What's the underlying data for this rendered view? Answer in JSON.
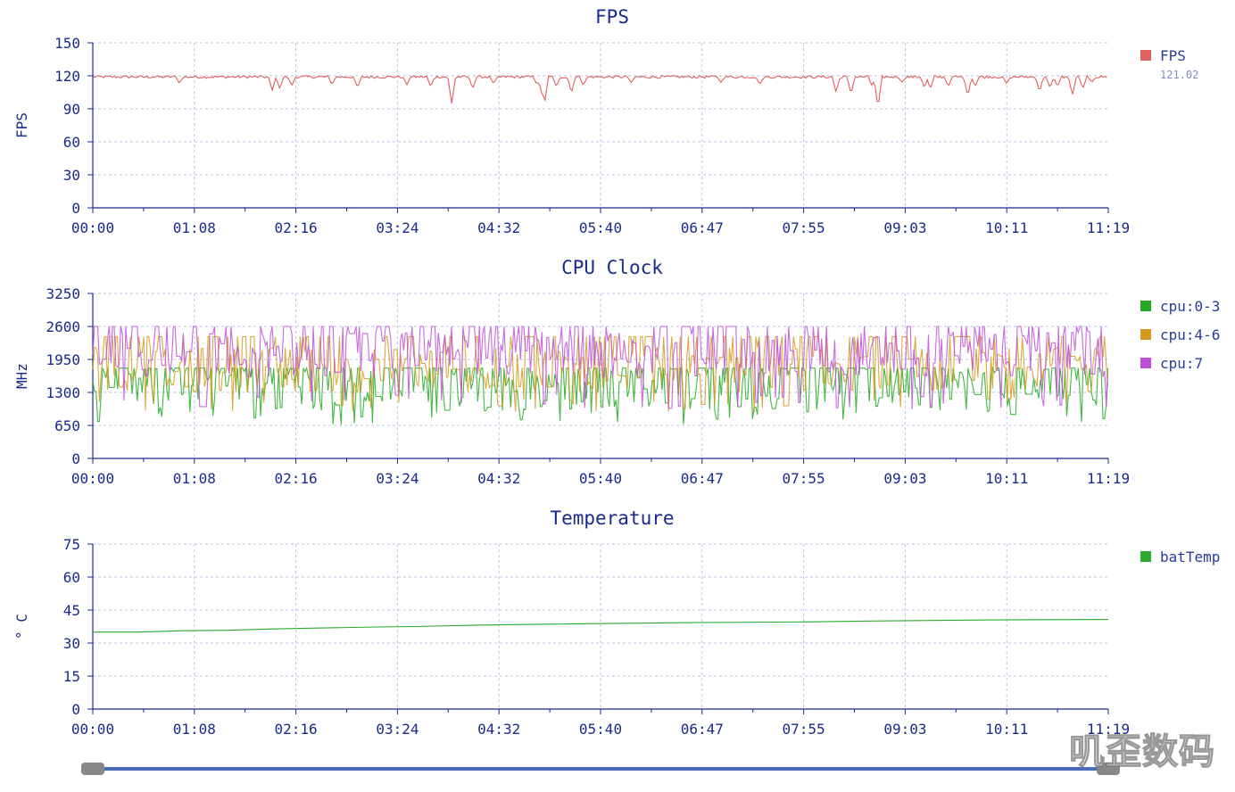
{
  "x_ticks": [
    "00:00",
    "01:08",
    "02:16",
    "03:24",
    "04:32",
    "05:40",
    "06:47",
    "07:55",
    "09:03",
    "10:11",
    "11:19"
  ],
  "watermark": "叽歪数码",
  "colors": {
    "axis": "#1a2a8c",
    "title": "#1a2a8c",
    "grid": "#b8c4e0",
    "legend_text": "#2a3a9c",
    "slider_track": "#4a6ab8",
    "slider_handle": "#888888"
  },
  "chart_data": [
    {
      "type": "line",
      "title": "FPS",
      "ylabel": "FPS",
      "xlabel": "",
      "ylim": [
        0,
        150
      ],
      "yticks": [
        0,
        30,
        60,
        90,
        120,
        150
      ],
      "x_range_seconds": [
        0,
        679
      ],
      "legend_position": "right",
      "grid": true,
      "series": [
        {
          "name": "FPS",
          "color": "#e06060",
          "legend_value": "121.02",
          "baseline": 119,
          "noise": 2.5,
          "dips": [
            [
              58,
              113
            ],
            [
              120,
              107
            ],
            [
              125,
              108
            ],
            [
              133,
              111
            ],
            [
              160,
              112
            ],
            [
              177,
              109
            ],
            [
              210,
              112
            ],
            [
              226,
              110
            ],
            [
              240,
              95
            ],
            [
              254,
              108
            ],
            [
              268,
              113
            ],
            [
              297,
              112
            ],
            [
              300,
              105
            ],
            [
              302,
              94
            ],
            [
              310,
              110
            ],
            [
              320,
              104
            ],
            [
              328,
              111
            ],
            [
              360,
              114
            ],
            [
              420,
              114
            ],
            [
              446,
              112
            ],
            [
              497,
              105
            ],
            [
              507,
              103
            ],
            [
              521,
              111
            ],
            [
              525,
              90
            ],
            [
              541,
              114
            ],
            [
              556,
              109
            ],
            [
              560,
              108
            ],
            [
              572,
              110
            ],
            [
              585,
              101
            ],
            [
              590,
              110
            ],
            [
              611,
              113
            ],
            [
              633,
              105
            ],
            [
              640,
              109
            ],
            [
              645,
              110
            ],
            [
              655,
              102
            ],
            [
              662,
              108
            ],
            [
              668,
              114
            ]
          ]
        }
      ]
    },
    {
      "type": "line",
      "title": "CPU Clock",
      "ylabel": "MHz",
      "xlabel": "",
      "ylim": [
        0,
        3250
      ],
      "yticks": [
        0,
        650,
        1300,
        1950,
        2600,
        3250
      ],
      "x_range_seconds": [
        0,
        679
      ],
      "legend_position": "right",
      "grid": true,
      "series": [
        {
          "name": "cpu:0-3",
          "color": "#22aa22",
          "high": 1780,
          "low": 650,
          "mid": 1400,
          "busy": 0.55
        },
        {
          "name": "cpu:4-6",
          "color": "#d49a20",
          "high": 2400,
          "low": 900,
          "mid": 1750,
          "busy": 0.45
        },
        {
          "name": "cpu:7",
          "color": "#c050d8",
          "high": 2600,
          "low": 950,
          "mid": 2050,
          "busy": 0.5
        }
      ]
    },
    {
      "type": "line",
      "title": "Temperature",
      "ylabel": "° C",
      "xlabel": "",
      "ylim": [
        0,
        75
      ],
      "yticks": [
        0,
        15,
        30,
        45,
        60,
        75
      ],
      "x_range_seconds": [
        0,
        679
      ],
      "legend_position": "right",
      "grid": true,
      "series": [
        {
          "name": "batTemp",
          "color": "#2aaa2a",
          "x": [
            0,
            30,
            60,
            90,
            120,
            150,
            190,
            215,
            260,
            305,
            400,
            475,
            520,
            600,
            679
          ],
          "y": [
            35,
            35,
            35.6,
            35.8,
            36.4,
            36.8,
            37.3,
            37.5,
            38.2,
            38.6,
            39.3,
            39.6,
            40.0,
            40.5,
            40.7
          ]
        }
      ]
    }
  ]
}
